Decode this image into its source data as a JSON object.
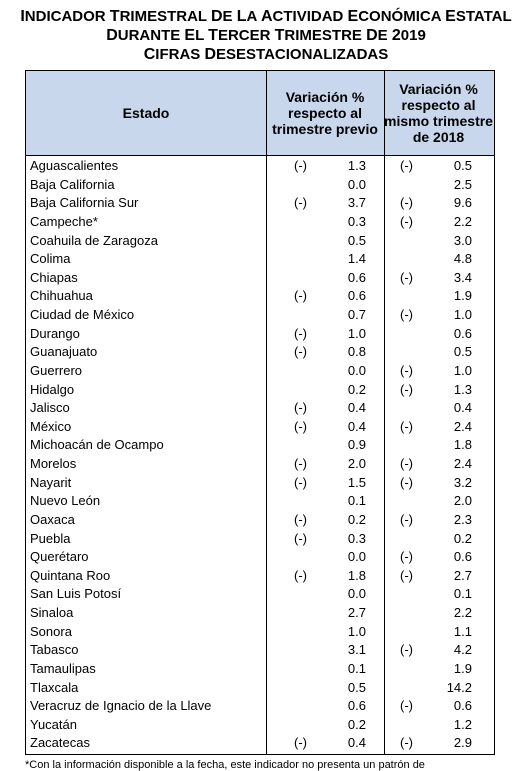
{
  "title": {
    "line1": "Indicador Trimestral de la Actividad Económica Estatal",
    "line2": "durante el tercer trimestre de 2019",
    "line3": "Cifras Desestacionalizadas"
  },
  "table": {
    "headers": {
      "estado": "Estado",
      "prev": "Variación % respecto al trimestre previo",
      "anual": "Variación % respecto al mismo trimestre de 2018"
    },
    "rows": [
      {
        "estado": "Aguascalientes",
        "prev_sign": "(-)",
        "prev": "1.3",
        "anual_sign": "(-)",
        "anual": "0.5"
      },
      {
        "estado": "Baja California",
        "prev_sign": "",
        "prev": "0.0",
        "anual_sign": "",
        "anual": "2.5"
      },
      {
        "estado": "Baja California Sur",
        "prev_sign": "(-)",
        "prev": "3.7",
        "anual_sign": "(-)",
        "anual": "9.6"
      },
      {
        "estado": "Campeche*",
        "prev_sign": "",
        "prev": "0.3",
        "anual_sign": "(-)",
        "anual": "2.2"
      },
      {
        "estado": "Coahuila de Zaragoza",
        "prev_sign": "",
        "prev": "0.5",
        "anual_sign": "",
        "anual": "3.0"
      },
      {
        "estado": "Colima",
        "prev_sign": "",
        "prev": "1.4",
        "anual_sign": "",
        "anual": "4.8"
      },
      {
        "estado": "Chiapas",
        "prev_sign": "",
        "prev": "0.6",
        "anual_sign": "(-)",
        "anual": "3.4"
      },
      {
        "estado": "Chihuahua",
        "prev_sign": "(-)",
        "prev": "0.6",
        "anual_sign": "",
        "anual": "1.9"
      },
      {
        "estado": "Ciudad de México",
        "prev_sign": "",
        "prev": "0.7",
        "anual_sign": "(-)",
        "anual": "1.0"
      },
      {
        "estado": "Durango",
        "prev_sign": "(-)",
        "prev": "1.0",
        "anual_sign": "",
        "anual": "0.6"
      },
      {
        "estado": "Guanajuato",
        "prev_sign": "(-)",
        "prev": "0.8",
        "anual_sign": "",
        "anual": "0.5"
      },
      {
        "estado": "Guerrero",
        "prev_sign": "",
        "prev": "0.0",
        "anual_sign": "(-)",
        "anual": "1.0"
      },
      {
        "estado": "Hidalgo",
        "prev_sign": "",
        "prev": "0.2",
        "anual_sign": "(-)",
        "anual": "1.3"
      },
      {
        "estado": "Jalisco",
        "prev_sign": "(-)",
        "prev": "0.4",
        "anual_sign": "",
        "anual": "0.4"
      },
      {
        "estado": "México",
        "prev_sign": "(-)",
        "prev": "0.4",
        "anual_sign": "(-)",
        "anual": "2.4"
      },
      {
        "estado": "Michoacán de Ocampo",
        "prev_sign": "",
        "prev": "0.9",
        "anual_sign": "",
        "anual": "1.8"
      },
      {
        "estado": "Morelos",
        "prev_sign": "(-)",
        "prev": "2.0",
        "anual_sign": "(-)",
        "anual": "2.4"
      },
      {
        "estado": "Nayarit",
        "prev_sign": "(-)",
        "prev": "1.5",
        "anual_sign": "(-)",
        "anual": "3.2"
      },
      {
        "estado": "Nuevo León",
        "prev_sign": "",
        "prev": "0.1",
        "anual_sign": "",
        "anual": "2.0"
      },
      {
        "estado": "Oaxaca",
        "prev_sign": "(-)",
        "prev": "0.2",
        "anual_sign": "(-)",
        "anual": "2.3"
      },
      {
        "estado": "Puebla",
        "prev_sign": "(-)",
        "prev": "0.3",
        "anual_sign": "",
        "anual": "0.2"
      },
      {
        "estado": "Querétaro",
        "prev_sign": "",
        "prev": "0.0",
        "anual_sign": "(-)",
        "anual": "0.6"
      },
      {
        "estado": "Quintana Roo",
        "prev_sign": "(-)",
        "prev": "1.8",
        "anual_sign": "(-)",
        "anual": "2.7"
      },
      {
        "estado": "San Luis Potosí",
        "prev_sign": "",
        "prev": "0.0",
        "anual_sign": "",
        "anual": "0.1"
      },
      {
        "estado": "Sinaloa",
        "prev_sign": "",
        "prev": "2.7",
        "anual_sign": "",
        "anual": "2.2"
      },
      {
        "estado": "Sonora",
        "prev_sign": "",
        "prev": "1.0",
        "anual_sign": "",
        "anual": "1.1"
      },
      {
        "estado": "Tabasco",
        "prev_sign": "",
        "prev": "3.1",
        "anual_sign": "(-)",
        "anual": "4.2"
      },
      {
        "estado": "Tamaulipas",
        "prev_sign": "",
        "prev": "0.1",
        "anual_sign": "",
        "anual": "1.9"
      },
      {
        "estado": "Tlaxcala",
        "prev_sign": "",
        "prev": "0.5",
        "anual_sign": "",
        "anual": "14.2"
      },
      {
        "estado": "Veracruz de Ignacio de la Llave",
        "prev_sign": "",
        "prev": "0.6",
        "anual_sign": "(-)",
        "anual": "0.6"
      },
      {
        "estado": "Yucatán",
        "prev_sign": "",
        "prev": "0.2",
        "anual_sign": "",
        "anual": "1.2"
      },
      {
        "estado": "Zacatecas",
        "prev_sign": "(-)",
        "prev": "0.4",
        "anual_sign": "(-)",
        "anual": "2.9"
      }
    ]
  },
  "footnote": "*Con la información disponible a la fecha, este indicador no presenta un patrón de",
  "colors": {
    "header_bg": "#c8d7ec"
  }
}
